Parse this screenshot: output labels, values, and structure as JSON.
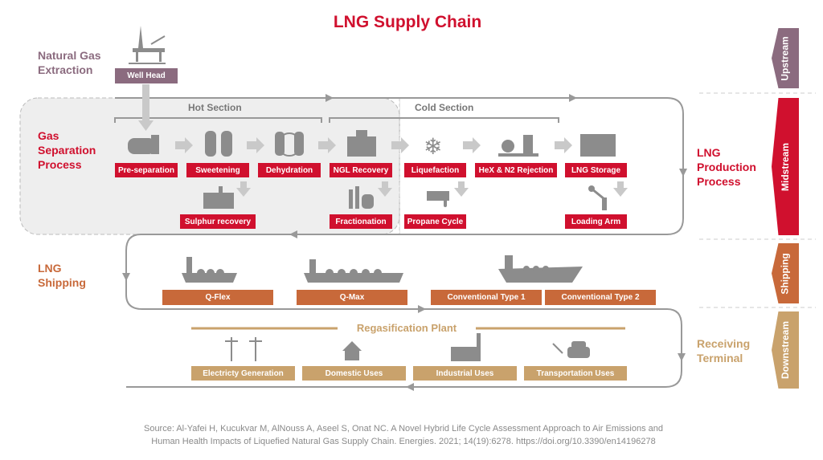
{
  "title": "LNG Supply Chain",
  "colors": {
    "midstream": "#d0102e",
    "upstream": "#8b6b7f",
    "shipping": "#c8693a",
    "downstream": "#c9a26c",
    "icons": "#8c8c8c"
  },
  "upstream": {
    "label": "Natural Gas Extraction",
    "well_head": "Well Head",
    "tab": "Upstream"
  },
  "midstream": {
    "gas_separation_label": "Gas Separation Process",
    "production_label": "LNG Production Process",
    "tab": "Midstream",
    "hot_section": "Hot Section",
    "cold_section": "Cold Section",
    "row1": [
      "Pre-separation",
      "Sweetening",
      "Dehydration",
      "NGL Recovery",
      "Liquefaction",
      "HeX & N2 Rejection",
      "LNG Storage"
    ],
    "row2": [
      "Sulphur recovery",
      "Fractionation",
      "Propane Cycle",
      "Loading Arm"
    ]
  },
  "shipping": {
    "label": "LNG Shipping",
    "tab": "Shipping",
    "vessels": [
      "Q-Flex",
      "Q-Max",
      "Conventional Type 1",
      "Conventional Type 2"
    ]
  },
  "downstream": {
    "label": "Receiving Terminal",
    "tab": "Downstream",
    "plant": "Regasification Plant",
    "uses": [
      "Electricty Generation",
      "Domestic Uses",
      "Industrial Uses",
      "Transportation Uses"
    ]
  },
  "source": [
    "Source: Al-Yafei H, Kucukvar M, AlNouss A, Aseel S, Onat NC. A Novel Hybrid Life Cycle Assessment Approach to Air Emissions and",
    "Human Health Impacts of Liquefied Natural Gas Supply Chain. Energies. 2021; 14(19):6278. https://doi.org/10.3390/en14196278"
  ]
}
